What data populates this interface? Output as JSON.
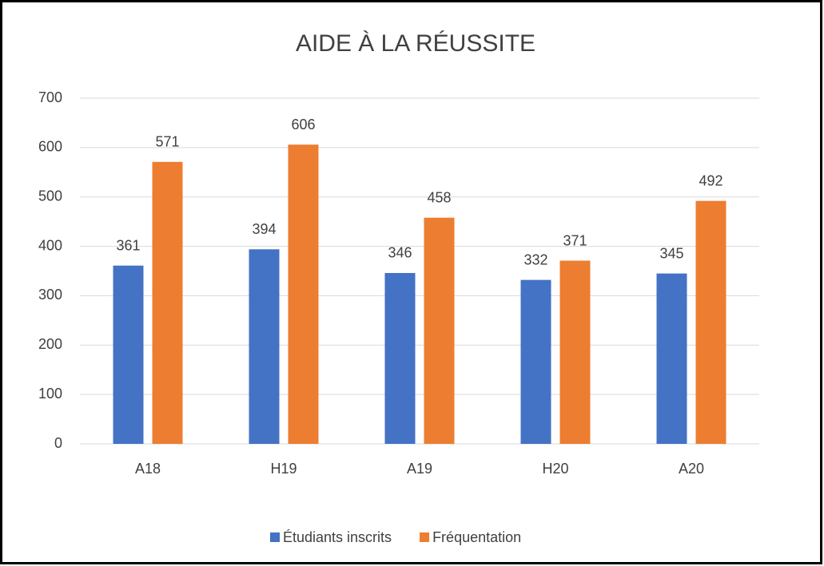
{
  "chart_data": {
    "type": "bar",
    "title": "AIDE À LA RÉUSSITE",
    "categories": [
      "A18",
      "H19",
      "A19",
      "H20",
      "A20"
    ],
    "series": [
      {
        "name": "Étudiants inscrits",
        "color": "#4472c4",
        "values": [
          361,
          394,
          346,
          332,
          345
        ]
      },
      {
        "name": "Fréquentation",
        "color": "#ed7d31",
        "values": [
          571,
          606,
          458,
          371,
          492
        ]
      }
    ],
    "ylim": [
      0,
      700
    ],
    "yticks": [
      0,
      100,
      200,
      300,
      400,
      500,
      600,
      700
    ],
    "grid": true,
    "legend": "bottom",
    "data_labels": true
  }
}
